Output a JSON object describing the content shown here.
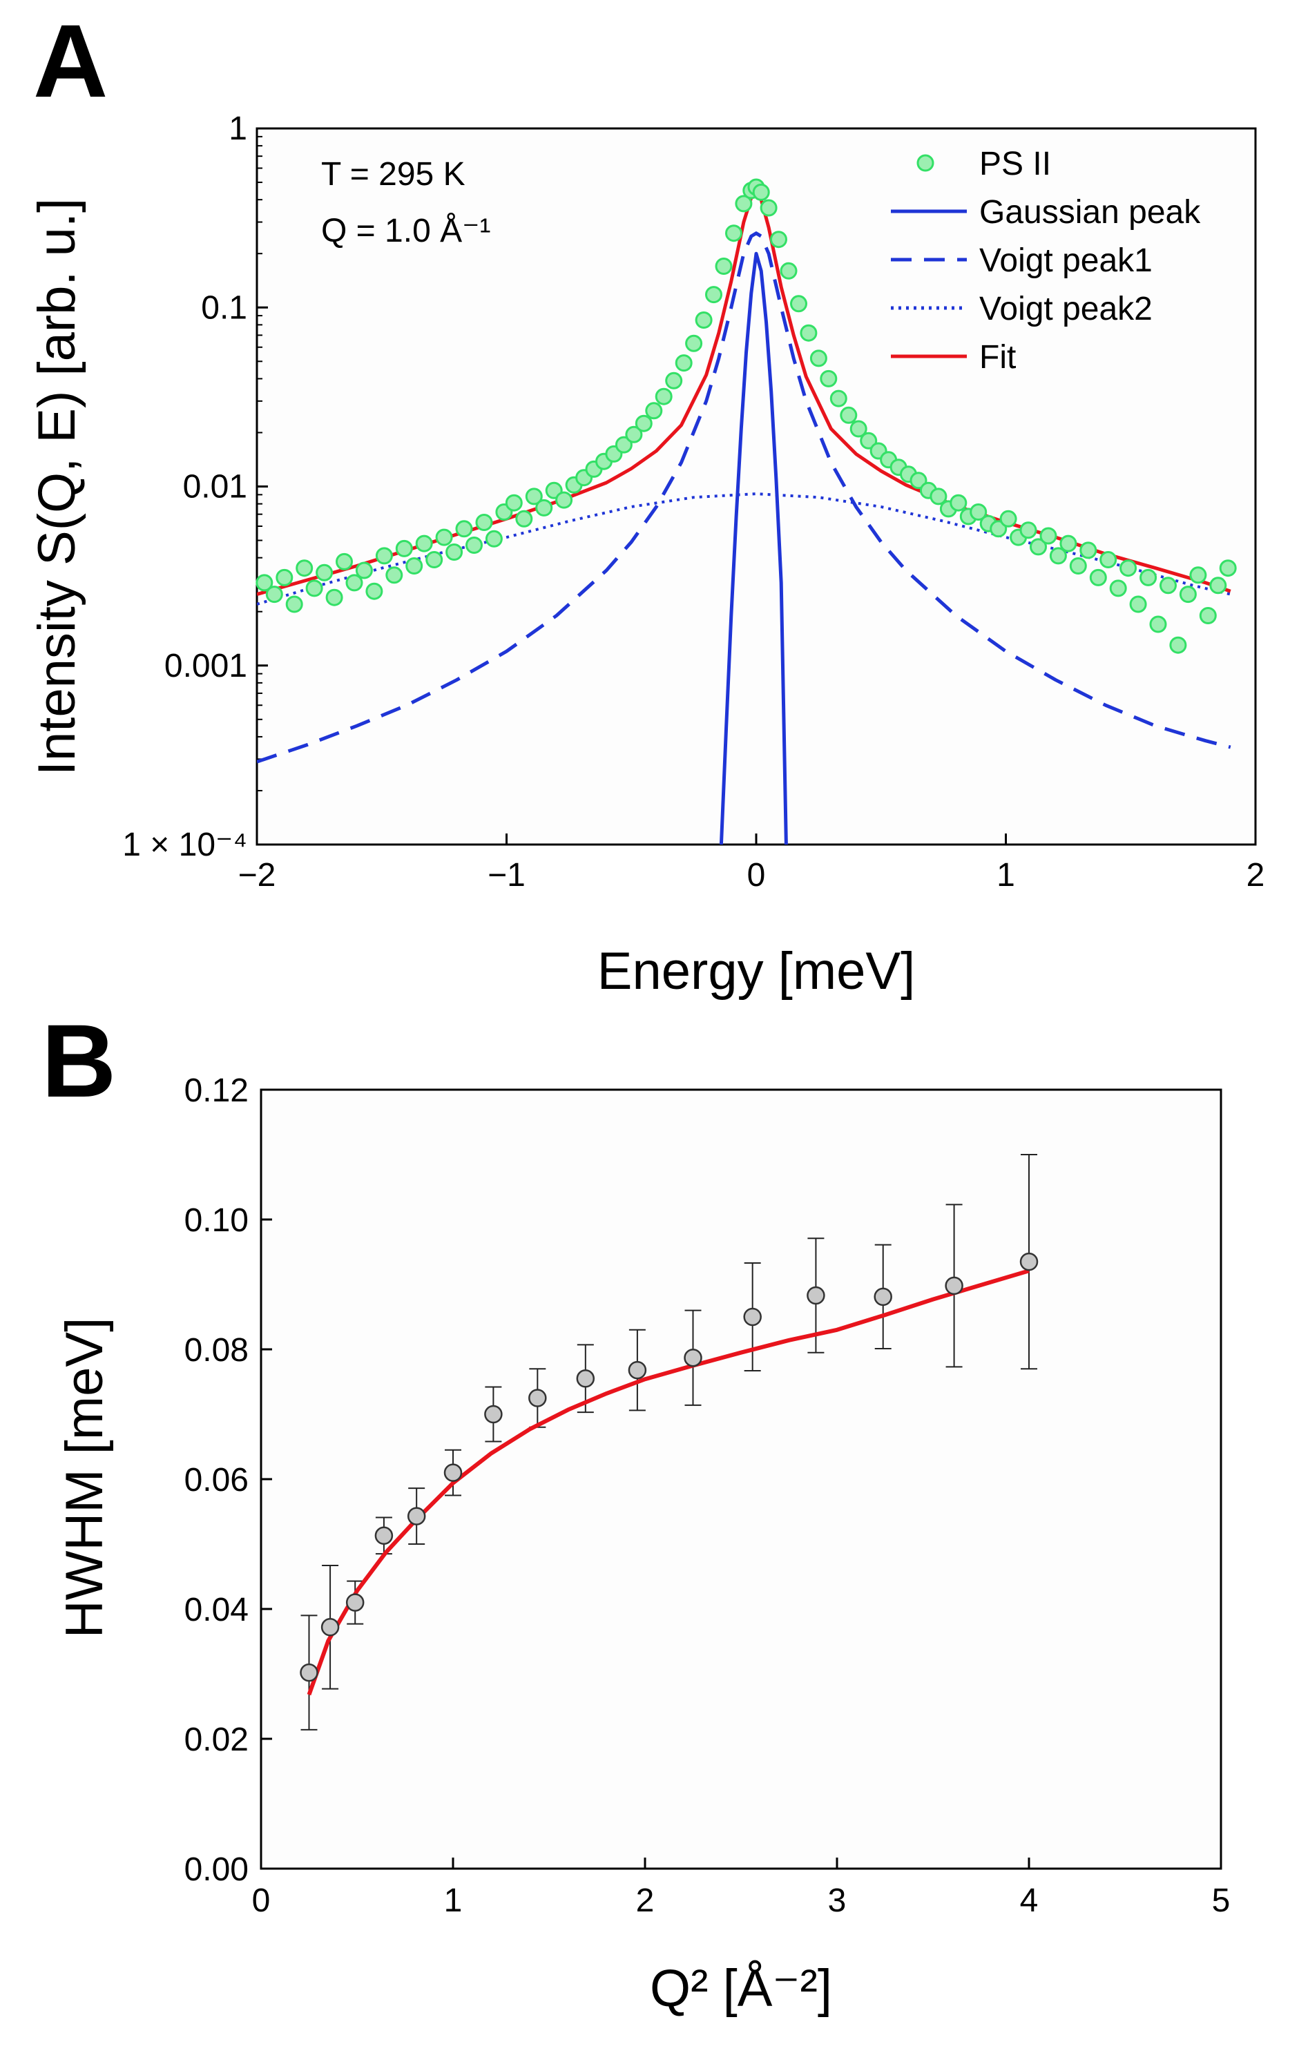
{
  "chart_data": [
    {
      "panel": "A",
      "type": "scatter",
      "title": "",
      "xlabel": "Energy [meV]",
      "ylabel": "Intensity S(Q, E) [arb. u.]",
      "yscale": "log",
      "xlim": [
        -2,
        2
      ],
      "ylim": [
        0.0001,
        1
      ],
      "xticks": [
        -2,
        -1,
        0,
        1,
        2
      ],
      "xtick_labels": [
        "−2",
        "−1",
        "0",
        "1",
        "2"
      ],
      "yticks": [
        1,
        0.1,
        0.01,
        0.001,
        0.0001
      ],
      "ytick_labels": [
        "1",
        "0.1",
        "0.01",
        "0.001",
        "1 × 10⁻⁴"
      ],
      "annotations": [
        "T =  295 K",
        "Q = 1.0 Å⁻¹"
      ],
      "legend": [
        "PS II",
        "Gaussian peak",
        "Voigt peak1",
        "Voigt peak2",
        "Fit"
      ],
      "legend_position": "top-right",
      "series": [
        {
          "name": "PS II",
          "kind": "markers",
          "color": "#33e066",
          "x": [
            -1.97,
            -1.93,
            -1.89,
            -1.85,
            -1.81,
            -1.77,
            -1.73,
            -1.69,
            -1.65,
            -1.61,
            -1.57,
            -1.53,
            -1.49,
            -1.45,
            -1.41,
            -1.37,
            -1.33,
            -1.29,
            -1.25,
            -1.21,
            -1.17,
            -1.13,
            -1.09,
            -1.05,
            -1.01,
            -0.97,
            -0.93,
            -0.89,
            -0.85,
            -0.81,
            -0.77,
            -0.73,
            -0.69,
            -0.65,
            -0.61,
            -0.57,
            -0.53,
            -0.49,
            -0.45,
            -0.41,
            -0.37,
            -0.33,
            -0.29,
            -0.25,
            -0.21,
            -0.17,
            -0.13,
            -0.09,
            -0.05,
            -0.02,
            0.0,
            0.02,
            0.05,
            0.09,
            0.13,
            0.17,
            0.21,
            0.25,
            0.29,
            0.33,
            0.37,
            0.41,
            0.45,
            0.49,
            0.53,
            0.57,
            0.61,
            0.65,
            0.69,
            0.73,
            0.77,
            0.81,
            0.85,
            0.89,
            0.93,
            0.97,
            1.01,
            1.05,
            1.09,
            1.13,
            1.17,
            1.21,
            1.25,
            1.29,
            1.33,
            1.37,
            1.41,
            1.45,
            1.49,
            1.53,
            1.57,
            1.61,
            1.65,
            1.69,
            1.73,
            1.77,
            1.81,
            1.85,
            1.89
          ],
          "y": [
            0.0029,
            0.0025,
            0.0031,
            0.0022,
            0.0035,
            0.0027,
            0.0033,
            0.0024,
            0.0038,
            0.0029,
            0.0034,
            0.0026,
            0.0041,
            0.0032,
            0.0045,
            0.0036,
            0.0048,
            0.0039,
            0.0052,
            0.0043,
            0.0058,
            0.0047,
            0.0063,
            0.0051,
            0.0072,
            0.0081,
            0.0066,
            0.0088,
            0.0076,
            0.0095,
            0.0084,
            0.0102,
            0.0112,
            0.0125,
            0.0138,
            0.0152,
            0.0171,
            0.0195,
            0.0225,
            0.0265,
            0.0318,
            0.039,
            0.049,
            0.063,
            0.085,
            0.118,
            0.17,
            0.26,
            0.38,
            0.45,
            0.47,
            0.44,
            0.36,
            0.24,
            0.16,
            0.105,
            0.072,
            0.052,
            0.04,
            0.031,
            0.025,
            0.021,
            0.018,
            0.0158,
            0.0141,
            0.0128,
            0.0117,
            0.0108,
            0.0095,
            0.0088,
            0.0075,
            0.0081,
            0.0068,
            0.0072,
            0.0062,
            0.0058,
            0.0066,
            0.0052,
            0.0057,
            0.0046,
            0.0053,
            0.0041,
            0.0048,
            0.0036,
            0.0044,
            0.0031,
            0.0039,
            0.0027,
            0.0035,
            0.0022,
            0.0031,
            0.0017,
            0.0028,
            0.0013,
            0.0025,
            0.0032,
            0.0019,
            0.0028,
            0.0035
          ]
        },
        {
          "name": "Gaussian peak",
          "kind": "line",
          "style": "solid",
          "color": "#1f35d6",
          "x": [
            -0.14,
            -0.12,
            -0.1,
            -0.08,
            -0.06,
            -0.04,
            -0.02,
            0.0,
            0.02,
            0.04,
            0.06,
            0.08,
            0.1,
            0.12
          ],
          "y": [
            0.0001,
            0.00045,
            0.0019,
            0.0068,
            0.021,
            0.056,
            0.12,
            0.2,
            0.16,
            0.083,
            0.034,
            0.011,
            0.0029,
            0.0001
          ]
        },
        {
          "name": "Voigt peak1",
          "kind": "line",
          "style": "dashed",
          "color": "#1f35d6",
          "x": [
            -2.0,
            -1.8,
            -1.6,
            -1.4,
            -1.2,
            -1.0,
            -0.8,
            -0.6,
            -0.5,
            -0.4,
            -0.3,
            -0.2,
            -0.15,
            -0.1,
            -0.05,
            -0.02,
            0.0,
            0.02,
            0.05,
            0.1,
            0.15,
            0.2,
            0.3,
            0.4,
            0.5,
            0.6,
            0.8,
            1.0,
            1.2,
            1.4,
            1.6,
            1.8,
            1.9
          ],
          "y": [
            0.00029,
            0.00036,
            0.00046,
            0.0006,
            0.00083,
            0.0012,
            0.0019,
            0.0034,
            0.0049,
            0.0077,
            0.0136,
            0.03,
            0.052,
            0.1,
            0.2,
            0.25,
            0.26,
            0.25,
            0.2,
            0.1,
            0.052,
            0.03,
            0.0136,
            0.0077,
            0.0049,
            0.0034,
            0.0019,
            0.0012,
            0.00083,
            0.0006,
            0.00046,
            0.00038,
            0.00035
          ]
        },
        {
          "name": "Voigt peak2",
          "kind": "line",
          "style": "dotted",
          "color": "#1f35d6",
          "x": [
            -2.0,
            -1.75,
            -1.5,
            -1.25,
            -1.0,
            -0.75,
            -0.5,
            -0.25,
            0.0,
            0.25,
            0.5,
            0.75,
            1.0,
            1.25,
            1.5,
            1.75,
            1.9
          ],
          "y": [
            0.0022,
            0.0028,
            0.0035,
            0.0043,
            0.0052,
            0.0064,
            0.0077,
            0.0087,
            0.0091,
            0.0087,
            0.0077,
            0.0064,
            0.0052,
            0.0043,
            0.0035,
            0.0028,
            0.0025
          ]
        },
        {
          "name": "Fit",
          "kind": "line",
          "style": "solid",
          "color": "#e8141c",
          "x": [
            -2.0,
            -1.8,
            -1.6,
            -1.4,
            -1.2,
            -1.0,
            -0.8,
            -0.6,
            -0.5,
            -0.4,
            -0.3,
            -0.2,
            -0.15,
            -0.1,
            -0.05,
            -0.02,
            0.0,
            0.02,
            0.05,
            0.1,
            0.15,
            0.2,
            0.3,
            0.4,
            0.5,
            0.6,
            0.8,
            1.0,
            1.2,
            1.4,
            1.6,
            1.8,
            1.9
          ],
          "y": [
            0.0025,
            0.003,
            0.0036,
            0.0044,
            0.0054,
            0.0066,
            0.0082,
            0.0105,
            0.0126,
            0.0158,
            0.022,
            0.042,
            0.072,
            0.14,
            0.3,
            0.41,
            0.43,
            0.4,
            0.28,
            0.13,
            0.07,
            0.041,
            0.021,
            0.0152,
            0.0122,
            0.0102,
            0.0078,
            0.0063,
            0.0052,
            0.0042,
            0.0035,
            0.0029,
            0.0026
          ]
        }
      ]
    },
    {
      "panel": "B",
      "type": "scatter",
      "title": "",
      "xlabel": "Q² [Å⁻²]",
      "ylabel": "HWHM [meV]",
      "xlim": [
        0,
        5
      ],
      "ylim": [
        0,
        0.12
      ],
      "xticks": [
        0,
        1,
        2,
        3,
        4,
        5
      ],
      "xtick_labels": [
        "0",
        "1",
        "2",
        "3",
        "4",
        "5"
      ],
      "yticks": [
        0,
        0.02,
        0.04,
        0.06,
        0.08,
        0.1,
        0.12
      ],
      "ytick_labels": [
        "0.00",
        "0.02",
        "0.04",
        "0.06",
        "0.08",
        "0.10",
        "0.12"
      ],
      "series": [
        {
          "name": "HWHM",
          "kind": "markers-errorbars",
          "color": "#c8c8c8",
          "x": [
            0.25,
            0.36,
            0.49,
            0.64,
            0.81,
            1.0,
            1.21,
            1.44,
            1.69,
            1.96,
            2.25,
            2.56,
            2.89,
            3.24,
            3.61,
            4.0
          ],
          "y": [
            0.0302,
            0.0372,
            0.041,
            0.0513,
            0.0543,
            0.061,
            0.07,
            0.0725,
            0.0755,
            0.0768,
            0.0787,
            0.085,
            0.0883,
            0.0881,
            0.0898,
            0.0935
          ],
          "yerr": [
            0.0088,
            0.0095,
            0.0033,
            0.0028,
            0.0043,
            0.0035,
            0.0042,
            0.0045,
            0.0052,
            0.0062,
            0.0073,
            0.0083,
            0.0088,
            0.008,
            0.0125,
            0.0165
          ]
        },
        {
          "name": "Fit",
          "kind": "line",
          "color": "#e8141c",
          "x": [
            0.25,
            0.35,
            0.5,
            0.65,
            0.8,
            1.0,
            1.2,
            1.4,
            1.6,
            1.8,
            2.0,
            2.25,
            2.5,
            2.75,
            3.0,
            3.25,
            3.5,
            3.75,
            4.0
          ],
          "y": [
            0.0268,
            0.0351,
            0.0428,
            0.0487,
            0.0535,
            0.0594,
            0.064,
            0.0677,
            0.0707,
            0.0732,
            0.0754,
            0.0775,
            0.0795,
            0.0814,
            0.083,
            0.0853,
            0.0877,
            0.0899,
            0.0921
          ]
        }
      ]
    }
  ]
}
